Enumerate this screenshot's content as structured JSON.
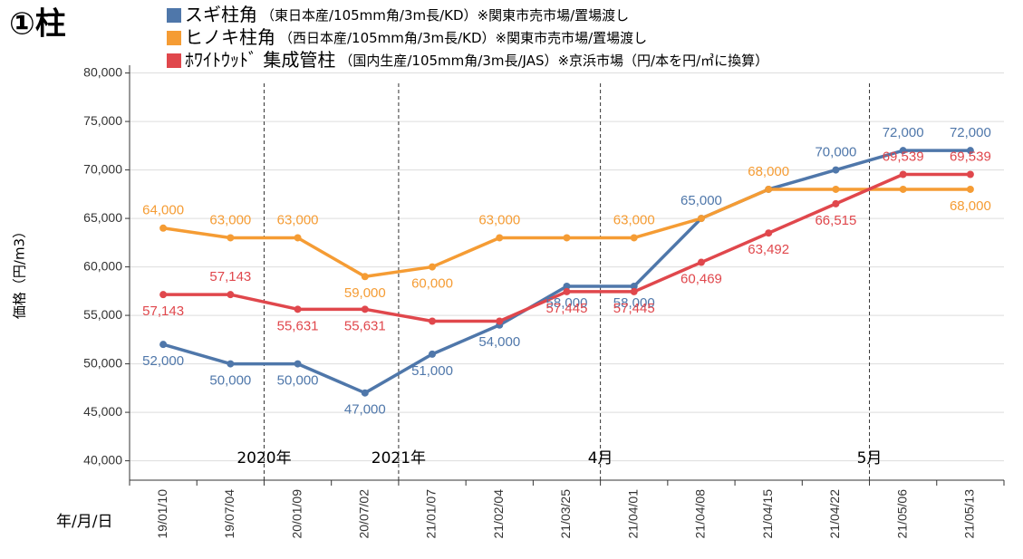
{
  "chart_data": {
    "type": "line",
    "title": "①柱",
    "y_label": "価格（円/m3）",
    "x_label": "年/月/日",
    "categories": [
      "19/01/10",
      "19/07/04",
      "20/01/09",
      "20/07/02",
      "21/01/07",
      "21/02/04",
      "21/03/25",
      "21/04/01",
      "21/04/08",
      "21/04/15",
      "21/04/22",
      "21/05/06",
      "21/05/13"
    ],
    "series": [
      {
        "name": "スギ柱角",
        "note": "（東日本産/105mm角/3m長/KD）※関東市売市場/置場渡し",
        "color": "#4f77aa",
        "values": [
          52000,
          50000,
          50000,
          47000,
          51000,
          54000,
          58000,
          58000,
          65000,
          68000,
          70000,
          72000,
          72000
        ],
        "value_labels": [
          "52,000",
          "50,000",
          "50,000",
          "47,000",
          "51,000",
          "54,000",
          "58,000",
          "58,000",
          "65,000",
          null,
          "70,000",
          "72,000",
          "72,000"
        ]
      },
      {
        "name": "ヒノキ柱角",
        "note": "（西日本産/105mm角/3m長/KD）※関東市売市場/置場渡し",
        "color": "#f59c34",
        "values": [
          64000,
          63000,
          63000,
          59000,
          60000,
          63000,
          63000,
          63000,
          65000,
          68000,
          68000,
          68000,
          68000
        ],
        "value_labels": [
          "64,000",
          "63,000",
          "63,000",
          "59,000",
          "60,000",
          "63,000",
          null,
          "63,000",
          null,
          "68,000",
          null,
          null,
          "68,000"
        ]
      },
      {
        "name": "ﾎﾜｲﾄｳｯﾄﾞ 集成管柱",
        "note": "（国内生産/105mm角/3m長/JAS）※京浜市場（円/本を円/㎥に換算）",
        "color": "#e0474c",
        "values": [
          57143,
          57143,
          55631,
          55631,
          54400,
          54400,
          57445,
          57445,
          60469,
          63492,
          66515,
          69539,
          69539
        ],
        "value_labels": [
          "57,143",
          "57,143",
          "55,631",
          "55,631",
          null,
          null,
          "57,445",
          "57,445",
          "60,469",
          "63,492",
          "66,515",
          "69,539",
          "69,539"
        ]
      }
    ],
    "period_markers": [
      {
        "label": "2020年",
        "category": "20/01/09"
      },
      {
        "label": "2021年",
        "category": "21/01/07"
      },
      {
        "label": "4月",
        "category": "21/04/01"
      },
      {
        "label": "5月",
        "category": "21/05/06"
      }
    ],
    "ylim": [
      38000,
      80800
    ],
    "yticks": [
      {
        "value": 40000,
        "label": "40,000"
      },
      {
        "value": 45000,
        "label": "45,000"
      },
      {
        "value": 50000,
        "label": "50,000"
      },
      {
        "value": 55000,
        "label": "55,000"
      },
      {
        "value": 60000,
        "label": "60,000"
      },
      {
        "value": 65000,
        "label": "65,000"
      },
      {
        "value": 70000,
        "label": "70,000"
      },
      {
        "value": 75000,
        "label": "75,000"
      },
      {
        "value": 80000,
        "label": "80,000"
      }
    ],
    "grid": true
  }
}
